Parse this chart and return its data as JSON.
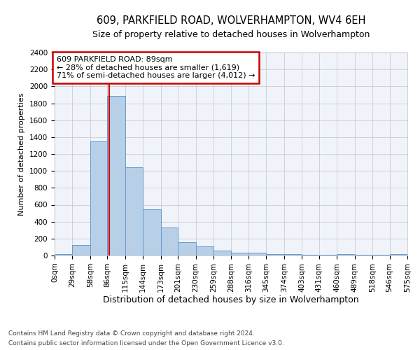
{
  "title1": "609, PARKFIELD ROAD, WOLVERHAMPTON, WV4 6EH",
  "title2": "Size of property relative to detached houses in Wolverhampton",
  "xlabel": "Distribution of detached houses by size in Wolverhampton",
  "ylabel": "Number of detached properties",
  "bin_edges": [
    0,
    29,
    58,
    86,
    115,
    144,
    173,
    201,
    230,
    259,
    288,
    316,
    345,
    374,
    403,
    431,
    460,
    489,
    518,
    546,
    575
  ],
  "bar_heights": [
    20,
    125,
    1350,
    1890,
    1045,
    545,
    335,
    155,
    110,
    60,
    35,
    30,
    20,
    20,
    10,
    5,
    15,
    5,
    5,
    15
  ],
  "bar_color": "#b8cfe8",
  "bar_edge_color": "#6699cc",
  "red_line_x": 89,
  "annotation_title": "609 PARKFIELD ROAD: 89sqm",
  "annotation_line1": "← 28% of detached houses are smaller (1,619)",
  "annotation_line2": "71% of semi-detached houses are larger (4,012) →",
  "annotation_box_color": "#ffffff",
  "annotation_box_edge_color": "#cc0000",
  "red_line_color": "#cc0000",
  "grid_color": "#cccccc",
  "plot_bg_color": "#f0f4fa",
  "fig_bg_color": "#ffffff",
  "ylim": [
    0,
    2400
  ],
  "yticks": [
    0,
    200,
    400,
    600,
    800,
    1000,
    1200,
    1400,
    1600,
    1800,
    2000,
    2200,
    2400
  ],
  "footer1": "Contains HM Land Registry data © Crown copyright and database right 2024.",
  "footer2": "Contains public sector information licensed under the Open Government Licence v3.0.",
  "title1_fontsize": 10.5,
  "title2_fontsize": 9,
  "xlabel_fontsize": 9,
  "ylabel_fontsize": 8,
  "tick_fontsize": 7.5,
  "annotation_fontsize": 8,
  "footer_fontsize": 6.5
}
